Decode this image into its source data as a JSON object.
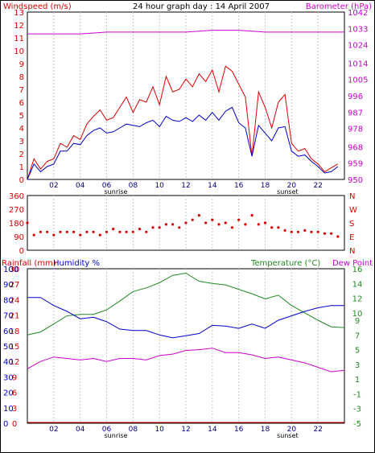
{
  "chart_data": [
    {
      "type": "line",
      "panel": "wind_baro",
      "title": "24 hour graph day : 14 April 2007",
      "ylabel_left": "Windspeed (m/s)",
      "ylabel_right": "Barometer (hPa)",
      "ylim_left": [
        0,
        13
      ],
      "ylim_right": [
        950,
        1042
      ],
      "y_ticks_left": [
        "0",
        "1",
        "2",
        "3",
        "4",
        "5",
        "6",
        "7",
        "8",
        "9",
        "10",
        "11",
        "12",
        "13"
      ],
      "y_ticks_right": [
        "950",
        "959",
        "968",
        "978",
        "987",
        "996",
        "1005",
        "1014",
        "1024",
        "1033",
        "1042"
      ],
      "x_ticks": [
        "02",
        "04",
        "06",
        "08",
        "10",
        "12",
        "14",
        "16",
        "18",
        "20",
        "22"
      ],
      "xlim": [
        0,
        24
      ],
      "sunrise": {
        "label": "sunrise",
        "hour": 6.7
      },
      "sunset": {
        "label": "sunset",
        "hour": 19.7
      },
      "grid": true,
      "series": [
        {
          "color": "#dd0000",
          "x": [
            0,
            0.5,
            1,
            1.5,
            2,
            2.5,
            3,
            3.5,
            4,
            4.5,
            5,
            5.5,
            6,
            6.5,
            7,
            7.5,
            8,
            8.5,
            9,
            9.5,
            10,
            10.5,
            11,
            11.5,
            12,
            12.5,
            13,
            13.5,
            14,
            14.5,
            15,
            15.5,
            16,
            16.5,
            17,
            17.5,
            18,
            18.5,
            19,
            19.5,
            20,
            20.5,
            21,
            21.5,
            22,
            22.5,
            23,
            23.5
          ],
          "values": [
            0,
            1.6,
            0.8,
            1.4,
            1.6,
            2.8,
            2.5,
            3.4,
            3.1,
            4.3,
            4.9,
            5.4,
            4.6,
            4.8,
            5.6,
            6.4,
            5.2,
            6.2,
            6.0,
            7.2,
            5.8,
            8.0,
            6.8,
            7.0,
            7.8,
            7.2,
            8.2,
            7.6,
            8.5,
            6.8,
            8.8,
            8.4,
            7.4,
            6.4,
            1.8,
            6.8,
            5.6,
            4.0,
            6.0,
            6.6,
            2.8,
            2.2,
            2.4,
            1.6,
            1.2,
            0.6,
            0.9,
            1.2
          ]
        },
        {
          "color": "#0000cc",
          "x": [
            0,
            0.5,
            1,
            1.5,
            2,
            2.5,
            3,
            3.5,
            4,
            4.5,
            5,
            5.5,
            6,
            6.5,
            7,
            7.5,
            8,
            8.5,
            9,
            9.5,
            10,
            10.5,
            11,
            11.5,
            12,
            12.5,
            13,
            13.5,
            14,
            14.5,
            15,
            15.5,
            16,
            16.5,
            17,
            17.5,
            18,
            18.5,
            19,
            19.5,
            20,
            20.5,
            21,
            21.5,
            22,
            22.5,
            23,
            23.5
          ],
          "values": [
            0,
            1.2,
            0.6,
            1.0,
            1.2,
            2.2,
            2.2,
            2.8,
            2.7,
            3.4,
            3.8,
            4.0,
            3.6,
            3.7,
            4.0,
            4.3,
            4.2,
            4.1,
            4.4,
            4.6,
            4.1,
            4.9,
            4.6,
            4.5,
            4.8,
            4.5,
            5.0,
            4.6,
            5.2,
            4.6,
            5.3,
            5.6,
            4.4,
            4.0,
            1.8,
            4.2,
            3.6,
            3.0,
            4.0,
            4.1,
            2.2,
            1.8,
            1.9,
            1.4,
            1.0,
            0.5,
            0.6,
            1.0
          ]
        },
        {
          "color": "#cc00cc",
          "axis": "right",
          "x": [
            0,
            2,
            4,
            6,
            8,
            10,
            12,
            14,
            16,
            18,
            20,
            22,
            24
          ],
          "values": [
            1030,
            1030,
            1030,
            1031,
            1031,
            1031,
            1031,
            1032,
            1032,
            1031,
            1031,
            1031,
            1031
          ]
        }
      ]
    },
    {
      "type": "scatter",
      "panel": "wind_direction",
      "ylim": [
        0,
        360
      ],
      "y_ticks": [
        "0",
        "90",
        "180",
        "270",
        "360"
      ],
      "compass_labels": [
        "N",
        "E",
        "S",
        "W",
        "N"
      ],
      "x_ticks": [
        "02",
        "04",
        "06",
        "08",
        "10",
        "12",
        "14",
        "16",
        "18",
        "20",
        "22"
      ],
      "xlim": [
        0,
        24
      ],
      "series": [
        {
          "color": "#dd0000",
          "x": [
            0,
            0.5,
            1,
            1.5,
            2,
            2.5,
            3,
            3.5,
            4,
            4.5,
            5,
            5.5,
            6,
            6.5,
            7,
            7.5,
            8,
            8.5,
            9,
            9.5,
            10,
            10.5,
            11,
            11.5,
            12,
            12.5,
            13,
            13.5,
            14,
            14.5,
            15,
            15.5,
            16,
            16.5,
            17,
            17.5,
            18,
            18.5,
            19,
            19.5,
            20,
            20.5,
            21,
            21.5,
            22,
            22.5,
            23,
            23.5
          ],
          "values": [
            180,
            100,
            120,
            120,
            100,
            120,
            120,
            120,
            100,
            120,
            120,
            100,
            120,
            140,
            120,
            120,
            120,
            140,
            120,
            150,
            150,
            170,
            170,
            150,
            180,
            200,
            230,
            180,
            200,
            170,
            180,
            150,
            200,
            170,
            230,
            170,
            180,
            150,
            150,
            130,
            120,
            120,
            130,
            120,
            120,
            110,
            110,
            90
          ]
        }
      ]
    },
    {
      "type": "line",
      "panel": "rain_hum_temp",
      "ylabel_left_1": "Rainfall (mm)",
      "ylabel_left_2": "Humidity %",
      "ylabel_right_1": "Temperature (°C)",
      "ylabel_right_2": "Dew Point",
      "y_ticks_rain": [
        "0",
        "3",
        "6",
        "9",
        "12",
        "15",
        "18",
        "21",
        "24",
        "27",
        "30"
      ],
      "y_ticks_humidity": [
        "0",
        "10",
        "20",
        "30",
        "40",
        "50",
        "60",
        "70",
        "80",
        "90",
        "100"
      ],
      "y_ticks_temp": [
        "-5",
        "-3",
        "-1",
        "1",
        "3",
        "5",
        "7",
        "9",
        "10",
        "12",
        "14",
        "16"
      ],
      "ylim_temp": [
        -5,
        16
      ],
      "x_ticks": [
        "02",
        "04",
        "06",
        "08",
        "10",
        "12",
        "14",
        "16",
        "18",
        "20",
        "22"
      ],
      "xlim": [
        0,
        24
      ],
      "sunrise": {
        "label": "sunrise",
        "hour": 6.7
      },
      "sunset": {
        "label": "sunset",
        "hour": 19.7
      },
      "series": [
        {
          "color": "#228822",
          "axis": "temp",
          "x": [
            0,
            1,
            2,
            3,
            4,
            5,
            6,
            7,
            8,
            9,
            10,
            11,
            12,
            13,
            14,
            15,
            16,
            17,
            18,
            19,
            20,
            21,
            22,
            23,
            24
          ],
          "values": [
            7.0,
            7.4,
            8.5,
            9.6,
            9.8,
            9.8,
            10.4,
            11.6,
            12.9,
            13.4,
            14.1,
            15.1,
            15.4,
            14.3,
            14.0,
            13.8,
            13.2,
            12.6,
            11.9,
            12.4,
            11.0,
            10.0,
            9.0,
            8.1,
            8.0
          ]
        },
        {
          "color": "#0000cc",
          "axis": "temp",
          "x": [
            0,
            1,
            2,
            3,
            4,
            5,
            6,
            7,
            8,
            9,
            10,
            11,
            12,
            13,
            14,
            15,
            16,
            17,
            18,
            19,
            20,
            21,
            22,
            23,
            24
          ],
          "values": [
            12.1,
            12.1,
            11.0,
            10.2,
            9.2,
            9.4,
            8.8,
            7.8,
            7.6,
            7.6,
            7.0,
            6.6,
            6.9,
            7.2,
            8.3,
            8.2,
            7.9,
            8.5,
            7.9,
            9.0,
            9.6,
            10.2,
            10.7,
            11.0,
            11.0
          ]
        },
        {
          "color": "#cc00cc",
          "axis": "temp",
          "x": [
            0,
            1,
            2,
            3,
            4,
            5,
            6,
            7,
            8,
            9,
            10,
            11,
            12,
            13,
            14,
            15,
            16,
            17,
            18,
            19,
            20,
            21,
            22,
            23,
            24
          ],
          "values": [
            2.4,
            3.4,
            4.0,
            3.8,
            3.6,
            3.8,
            3.4,
            3.8,
            3.8,
            3.6,
            4.2,
            4.4,
            4.9,
            5.0,
            5.2,
            4.6,
            4.6,
            4.3,
            3.8,
            4.0,
            3.6,
            3.2,
            2.6,
            2.0,
            2.2
          ]
        },
        {
          "color": "#dd0000",
          "axis": "rain",
          "x": [
            0,
            24
          ],
          "values": [
            0,
            0
          ]
        }
      ]
    }
  ]
}
